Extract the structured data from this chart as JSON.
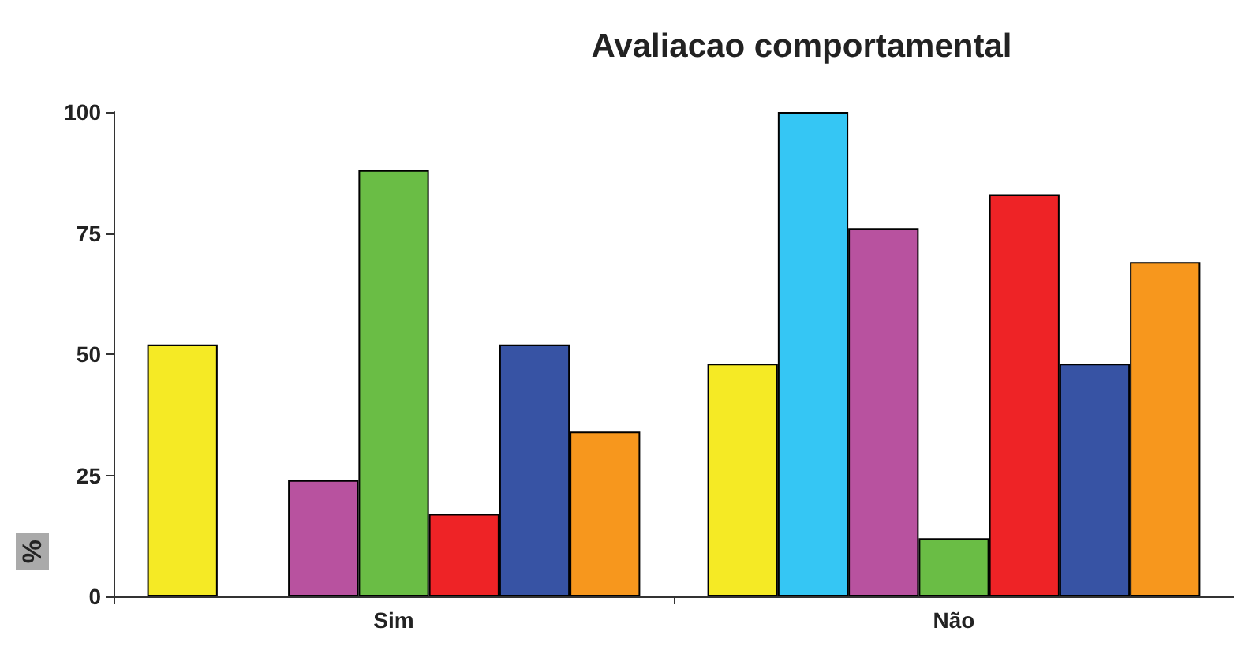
{
  "chart_data": {
    "type": "bar",
    "title": "Avaliacao comportamental",
    "ylabel": "%",
    "categories": [
      "Sim",
      "Não"
    ],
    "series": [
      {
        "color": "#f5ea25",
        "values": [
          52,
          48
        ]
      },
      {
        "color": "#35c6f4",
        "values": [
          null,
          100
        ]
      },
      {
        "color": "#b8529f",
        "values": [
          24,
          76
        ]
      },
      {
        "color": "#6abd45",
        "values": [
          88,
          12
        ]
      },
      {
        "color": "#ee2326",
        "values": [
          17,
          83
        ]
      },
      {
        "color": "#3753a4",
        "values": [
          52,
          48
        ]
      },
      {
        "color": "#f7971d",
        "values": [
          34,
          69
        ]
      }
    ],
    "ylim": [
      0,
      100
    ],
    "yticks": [
      0,
      25,
      50,
      75,
      100
    ],
    "grid": false
  }
}
